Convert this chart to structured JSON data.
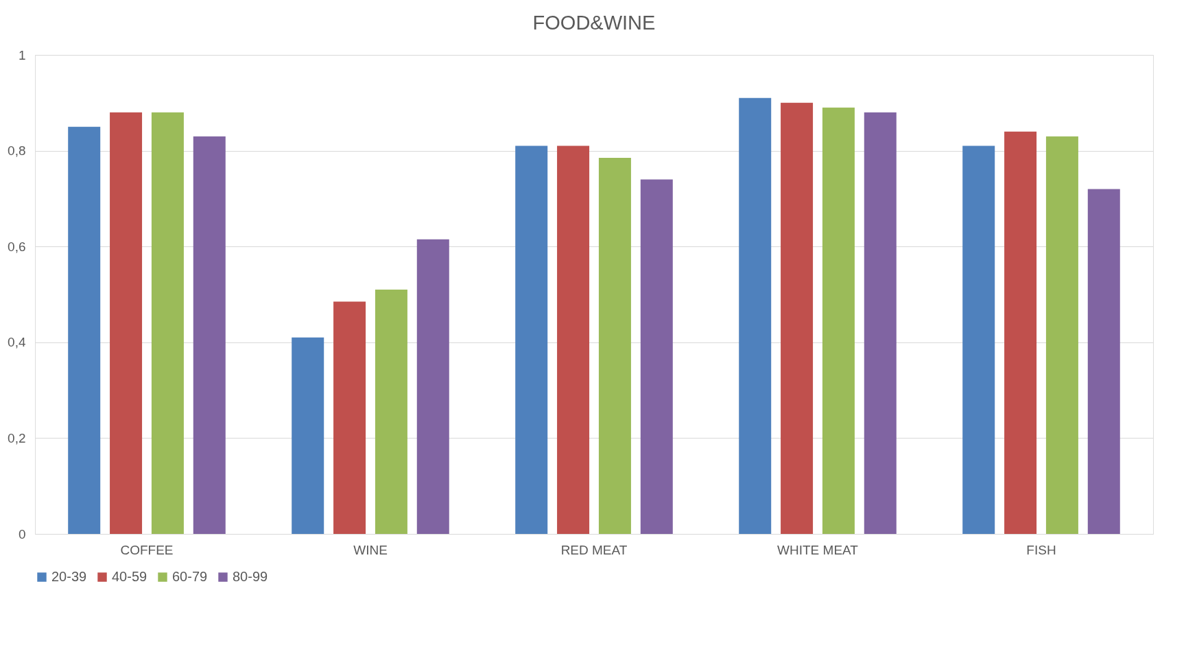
{
  "chart_data": {
    "type": "bar",
    "title": "FOOD&WINE",
    "categories": [
      "COFFEE",
      "WINE",
      "RED MEAT",
      "WHITE MEAT",
      "FISH"
    ],
    "series": [
      {
        "name": "20-39",
        "color": "#4f81bd",
        "values": [
          0.85,
          0.41,
          0.81,
          0.91,
          0.81
        ]
      },
      {
        "name": "40-59",
        "color": "#c0504d",
        "values": [
          0.88,
          0.485,
          0.81,
          0.9,
          0.84
        ]
      },
      {
        "name": "60-79",
        "color": "#9bbb59",
        "values": [
          0.88,
          0.51,
          0.785,
          0.89,
          0.83
        ]
      },
      {
        "name": "80-99",
        "color": "#8064a2",
        "values": [
          0.83,
          0.615,
          0.74,
          0.88,
          0.72
        ]
      }
    ],
    "ylim": [
      0,
      1
    ],
    "yticks": [
      0,
      {
        "value": 0.2,
        "label": "0,2"
      },
      {
        "value": 0.4,
        "label": "0,4"
      },
      {
        "value": 0.6,
        "label": "0,6"
      },
      {
        "value": 0.8,
        "label": "0,8"
      },
      1
    ],
    "grid": "y",
    "legend": "bottom"
  }
}
